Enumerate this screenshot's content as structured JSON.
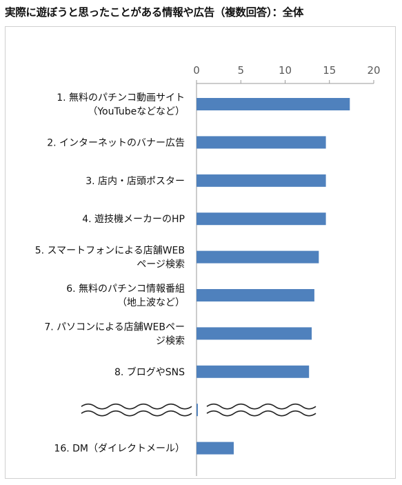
{
  "title": "実際に遊ぼうと思ったことがある情報や広告（複数回答）：全体",
  "chart_data": {
    "type": "bar",
    "orientation": "horizontal",
    "xlim": [
      0,
      20
    ],
    "ticks": [
      "0",
      "5",
      "10",
      "15",
      "20"
    ],
    "tick_values": [
      0,
      5,
      10,
      15,
      20
    ],
    "axis_position": "top",
    "grid": false,
    "legend": "none",
    "bar_color": "#4f81bd",
    "break_symbol": "double-wave",
    "categories": [
      {
        "label_lines": [
          "1. 無料のパチンコ動画サイト",
          "（YouTubeなどなど）"
        ],
        "value": 17.3
      },
      {
        "label_lines": [
          "2. インターネットのバナー広告"
        ],
        "value": 14.6
      },
      {
        "label_lines": [
          "3. 店内・店頭ポスター"
        ],
        "value": 14.6
      },
      {
        "label_lines": [
          "4. 遊技機メーカーのHP"
        ],
        "value": 14.6
      },
      {
        "label_lines": [
          "5. スマートフォンによる店舗WEB",
          "ページ検索"
        ],
        "value": 13.8
      },
      {
        "label_lines": [
          "6. 無料のパチンコ情報番組",
          "（地上波など）"
        ],
        "value": 13.3
      },
      {
        "label_lines": [
          "7. パソコンによる店舗WEBペー",
          "ジ検索"
        ],
        "value": 13.0
      },
      {
        "label_lines": [
          "8. ブログやSNS"
        ],
        "value": 12.7
      },
      {
        "label_lines": [
          ""
        ],
        "value": 0.15,
        "is_break": true
      },
      {
        "label_lines": [
          "16. DM（ダイレクトメール）"
        ],
        "value": 4.2
      }
    ]
  }
}
